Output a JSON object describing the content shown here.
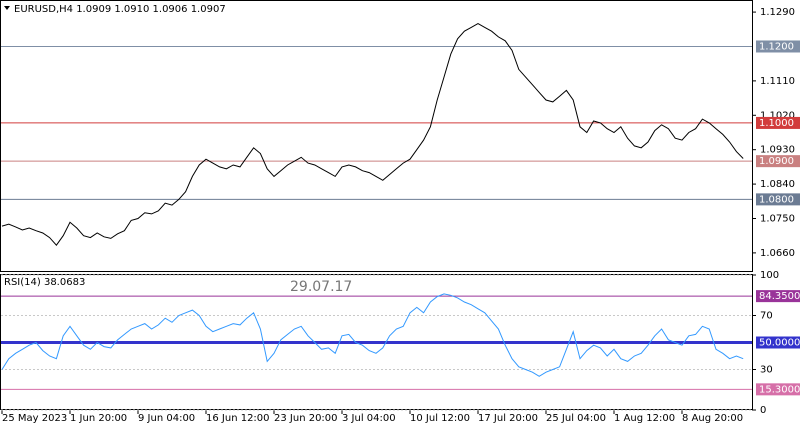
{
  "chart_data": [
    {
      "type": "line",
      "title": "EURUSD,H4  1.0909 1.0910 1.0906 1.0907",
      "categories": [
        "25 May 2023",
        null,
        null,
        null,
        null,
        null,
        null,
        null,
        null,
        null,
        "1 Jun 20:00",
        null,
        null,
        null,
        null,
        null,
        null,
        null,
        null,
        null,
        "9 Jun 04:00",
        null,
        null,
        null,
        null,
        null,
        null,
        null,
        null,
        null,
        "16 Jun 12:00",
        null,
        null,
        null,
        null,
        null,
        null,
        null,
        null,
        null,
        "23 Jun 20:00",
        null,
        null,
        null,
        null,
        null,
        null,
        null,
        null,
        null,
        "3 Jul 04:00",
        null,
        null,
        null,
        null,
        null,
        null,
        null,
        null,
        null,
        "10 Jul 12:00",
        null,
        null,
        null,
        null,
        null,
        null,
        null,
        null,
        null,
        "17 Jul 20:00",
        null,
        null,
        null,
        null,
        null,
        null,
        null,
        null,
        null,
        "25 Jul 04:00",
        null,
        null,
        null,
        null,
        null,
        null,
        null,
        null,
        null,
        "1 Aug 12:00",
        null,
        null,
        null,
        null,
        null,
        null,
        null,
        null,
        null,
        "8 Aug 20:00",
        null,
        null,
        null,
        null,
        null,
        null,
        null,
        null,
        null
      ],
      "series": [
        {
          "color": "#000000",
          "values": [
            1.073,
            1.0735,
            1.0728,
            1.072,
            1.0725,
            1.0718,
            1.0712,
            1.07,
            1.068,
            1.0705,
            1.074,
            1.0725,
            1.0705,
            1.07,
            1.0712,
            1.0702,
            1.0698,
            1.071,
            1.0718,
            1.0745,
            1.075,
            1.0765,
            1.0762,
            1.077,
            1.079,
            1.0785,
            1.08,
            1.082,
            1.086,
            1.089,
            1.0905,
            1.0895,
            1.0885,
            1.088,
            1.089,
            1.0885,
            1.091,
            1.0935,
            1.092,
            1.088,
            1.086,
            1.0875,
            1.089,
            1.09,
            1.091,
            1.0895,
            1.089,
            1.088,
            1.087,
            1.086,
            1.0885,
            1.089,
            1.0885,
            1.0875,
            1.087,
            1.086,
            1.085,
            1.0865,
            1.088,
            1.0895,
            1.0905,
            1.093,
            1.0955,
            1.099,
            1.106,
            1.112,
            1.118,
            1.122,
            1.124,
            1.125,
            1.126,
            1.125,
            1.124,
            1.1225,
            1.1215,
            1.119,
            1.114,
            1.112,
            1.11,
            1.108,
            1.106,
            1.1055,
            1.107,
            1.1085,
            1.106,
            1.099,
            1.0975,
            1.1005,
            1.1,
            1.0985,
            1.0975,
            1.099,
            1.096,
            1.094,
            1.0935,
            1.095,
            1.098,
            1.0995,
            1.0985,
            1.096,
            1.0955,
            1.0975,
            1.0985,
            1.101,
            1.1,
            1.0985,
            1.097,
            1.095,
            1.0925,
            1.0907
          ]
        }
      ],
      "ylim": [
        1.061,
        1.1319
      ],
      "yticks": [
        {
          "value": 1.129,
          "label": "1.1290"
        },
        {
          "value": 1.111,
          "label": "1.1110"
        },
        {
          "value": 1.102,
          "label": "1.1020"
        },
        {
          "value": 1.093,
          "label": "1.0930"
        },
        {
          "value": 1.084,
          "label": "1.0840"
        },
        {
          "value": 1.075,
          "label": "1.0750"
        },
        {
          "value": 1.066,
          "label": "1.0660"
        }
      ],
      "levels": [
        {
          "value": 1.12,
          "label": "1.1200",
          "color": "#7f8fa6"
        },
        {
          "value": 1.1,
          "label": "1.1000",
          "color": "#d23c3c"
        },
        {
          "value": 1.09,
          "label": "1.0900",
          "color": "#c98080"
        },
        {
          "value": 1.08,
          "label": "1.0800",
          "color": "#6b7b93"
        }
      ]
    },
    {
      "type": "line",
      "title": "RSI(14) 38.0683",
      "annotation": "29.07.17",
      "series": [
        {
          "color": "#3399ff",
          "values": [
            30,
            38,
            42,
            45,
            48,
            50,
            44,
            40,
            38,
            55,
            62,
            55,
            48,
            45,
            50,
            47,
            46,
            52,
            56,
            60,
            62,
            64,
            60,
            63,
            68,
            65,
            70,
            72,
            74,
            70,
            62,
            58,
            60,
            62,
            64,
            63,
            68,
            72,
            60,
            36,
            42,
            52,
            56,
            60,
            62,
            55,
            50,
            45,
            46,
            42,
            55,
            56,
            50,
            48,
            44,
            42,
            46,
            55,
            60,
            62,
            72,
            76,
            72,
            80,
            84,
            86,
            85,
            83,
            80,
            78,
            75,
            72,
            66,
            60,
            48,
            38,
            32,
            30,
            28,
            25,
            28,
            30,
            32,
            45,
            58,
            38,
            44,
            48,
            46,
            40,
            45,
            38,
            36,
            40,
            42,
            48,
            55,
            60,
            52,
            50,
            48,
            55,
            56,
            62,
            60,
            45,
            42,
            38,
            40,
            38
          ]
        }
      ],
      "ylim": [
        0,
        100
      ],
      "yticks": [
        100,
        70,
        30,
        0
      ],
      "grid": true,
      "levels": [
        {
          "value": 84.35,
          "label": "84.3500",
          "color": "#993399"
        },
        {
          "value": 50,
          "label": "50.0000",
          "color": "#3333cc"
        },
        {
          "value": 15.3,
          "label": "15.3000",
          "color": "#d66fa8"
        }
      ]
    }
  ]
}
